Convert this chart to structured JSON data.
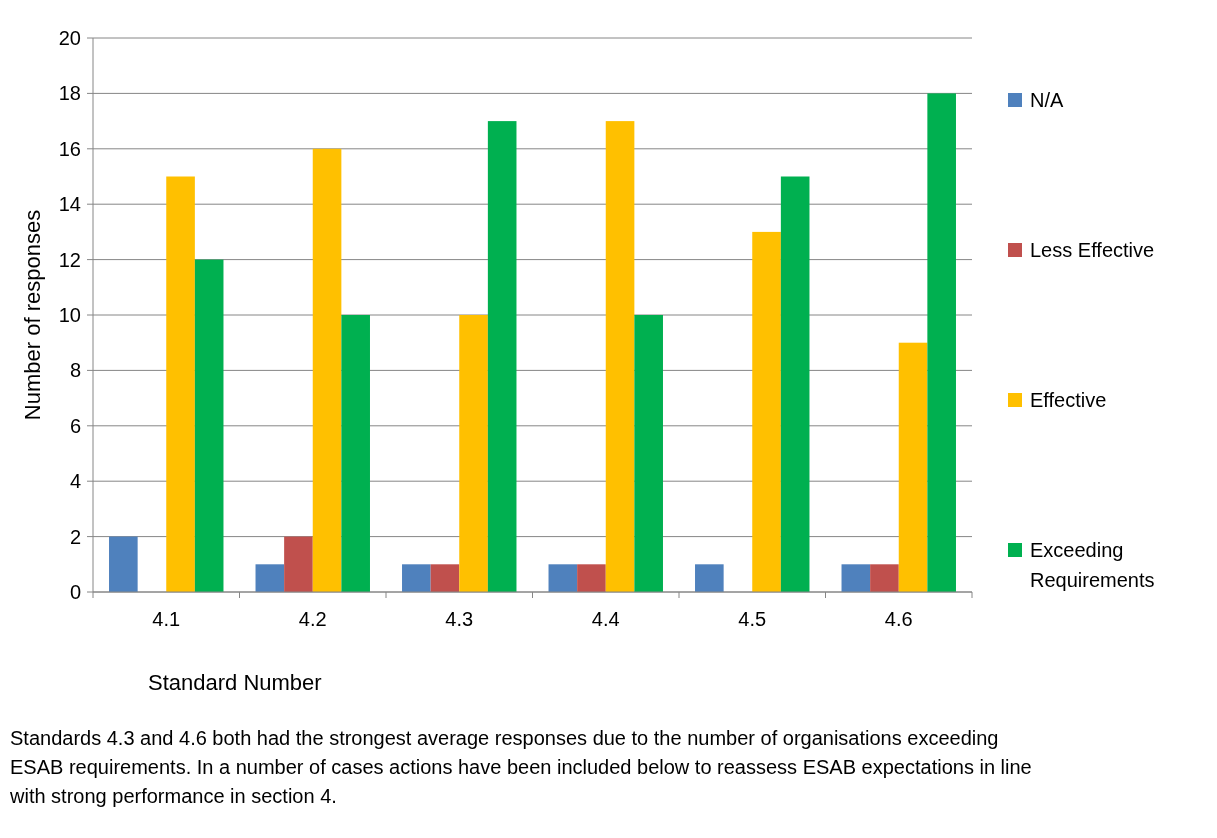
{
  "chart_data": {
    "type": "bar",
    "xlabel": "Standard Number",
    "ylabel": "Number of responses",
    "categories": [
      "4.1",
      "4.2",
      "4.3",
      "4.4",
      "4.5",
      "4.6"
    ],
    "series": [
      {
        "name": "N/A",
        "color": "#4f81bd",
        "values": [
          2,
          1,
          1,
          1,
          1,
          1
        ]
      },
      {
        "name": "Less Effective",
        "color": "#c0504d",
        "values": [
          0,
          2,
          1,
          1,
          0,
          1
        ]
      },
      {
        "name": "Effective",
        "color": "#ffc000",
        "values": [
          15,
          16,
          10,
          17,
          13,
          9
        ]
      },
      {
        "name": "Exceeding Requirements",
        "color": "#00b050",
        "values": [
          12,
          10,
          17,
          10,
          15,
          18
        ]
      }
    ],
    "ylim": [
      0,
      20
    ],
    "yticks": [
      0,
      2,
      4,
      6,
      8,
      10,
      12,
      14,
      16,
      18,
      20
    ],
    "grid": "y",
    "legend": "right",
    "annotations": [
      "Standards 4.3 and 4.6 both had the strongest average responses due to the number of organisations exceeding ESAB requirements. In a number of cases actions have been included below to reassess ESAB expectations in line with strong performance in section 4."
    ]
  }
}
